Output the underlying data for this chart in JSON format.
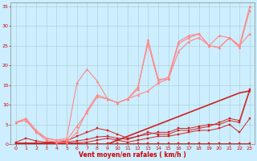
{
  "xlabel": "Vent moyen/en rafales ( km/h )",
  "xlim": [
    -0.5,
    23.5
  ],
  "ylim": [
    0,
    36
  ],
  "yticks": [
    0,
    5,
    10,
    15,
    20,
    25,
    30,
    35
  ],
  "xticks": [
    0,
    1,
    2,
    3,
    4,
    5,
    6,
    7,
    8,
    9,
    10,
    11,
    12,
    13,
    14,
    15,
    16,
    17,
    18,
    19,
    20,
    21,
    22,
    23
  ],
  "bg_color": "#cceeff",
  "grid_color": "#aacccc",
  "lines": [
    {
      "x": [
        0,
        1,
        2,
        3,
        4,
        5,
        6,
        7,
        8,
        9,
        10,
        11,
        12,
        13,
        14,
        15,
        16,
        17,
        18,
        19,
        20,
        21,
        22,
        23
      ],
      "y": [
        0.3,
        0.3,
        0.3,
        0.3,
        0.3,
        0.3,
        0.3,
        0.3,
        0.3,
        0.3,
        0.3,
        0.3,
        0.3,
        0.3,
        0.3,
        0.3,
        0.3,
        0.3,
        0.3,
        0.3,
        0.3,
        0.3,
        0.3,
        0.3
      ],
      "color": "#cc2222",
      "lw": 0.7,
      "marker": "s",
      "ms": 1.5
    },
    {
      "x": [
        0,
        1,
        2,
        3,
        4,
        5,
        6,
        7,
        8,
        9,
        10,
        11,
        12,
        13,
        14,
        15,
        16,
        17,
        18,
        19,
        20,
        21,
        22,
        23
      ],
      "y": [
        0.3,
        0.3,
        0.3,
        0.3,
        0.3,
        0.3,
        0.3,
        0.5,
        1.0,
        1.5,
        1.0,
        0.5,
        1.0,
        1.5,
        2.0,
        2.0,
        2.5,
        3.0,
        3.5,
        3.5,
        4.0,
        5.0,
        3.0,
        6.5
      ],
      "color": "#cc2222",
      "lw": 0.7,
      "marker": "s",
      "ms": 1.5
    },
    {
      "x": [
        0,
        1,
        2,
        3,
        4,
        5,
        6,
        7,
        8,
        9,
        10,
        11,
        12,
        13,
        14,
        15,
        16,
        17,
        18,
        19,
        20,
        21,
        22,
        23
      ],
      "y": [
        0.3,
        0.3,
        0.3,
        0.3,
        0.5,
        0.5,
        0.8,
        1.2,
        1.8,
        2.0,
        1.5,
        1.2,
        2.0,
        2.5,
        3.0,
        3.0,
        4.0,
        4.0,
        4.5,
        5.0,
        5.0,
        6.0,
        5.5,
        13.5
      ],
      "color": "#cc2222",
      "lw": 0.7,
      "marker": "s",
      "ms": 1.5
    },
    {
      "x": [
        0,
        1,
        2,
        3,
        4,
        5,
        6,
        7,
        8,
        9,
        10,
        11,
        12,
        13,
        14,
        15,
        16,
        17,
        18,
        19,
        20,
        21,
        22,
        23
      ],
      "y": [
        0.5,
        1.5,
        0.8,
        0.5,
        0.5,
        0.8,
        2.0,
        3.0,
        4.0,
        3.5,
        2.5,
        1.5,
        2.0,
        3.0,
        2.5,
        2.5,
        3.5,
        3.5,
        4.0,
        4.5,
        5.5,
        6.5,
        6.0,
        14.0
      ],
      "color": "#cc2222",
      "lw": 0.7,
      "marker": "s",
      "ms": 1.5
    },
    {
      "x": [
        0,
        1,
        2,
        3,
        4,
        5,
        6,
        7,
        8,
        9,
        10,
        11,
        12,
        13,
        14,
        15,
        16,
        17,
        18,
        19,
        20,
        21,
        22,
        23
      ],
      "y": [
        0,
        0,
        0,
        0,
        0,
        0,
        0,
        0,
        0,
        0,
        1,
        2,
        3,
        4,
        5,
        6,
        7,
        8,
        9,
        10,
        11,
        12,
        13,
        13.5
      ],
      "color": "#cc2222",
      "lw": 1.2,
      "marker": "None",
      "ms": 0
    },
    {
      "x": [
        0,
        1,
        2,
        3,
        4,
        5,
        6,
        7,
        8,
        9,
        10,
        11,
        12,
        13,
        14,
        15,
        16,
        17,
        18,
        19,
        20,
        21,
        22,
        23
      ],
      "y": [
        5.5,
        6.5,
        3.0,
        1.5,
        1.0,
        1.5,
        15.5,
        19.0,
        16.0,
        11.5,
        10.5,
        11.5,
        12.5,
        13.5,
        15.5,
        16.5,
        23.5,
        26.0,
        27.0,
        25.0,
        27.5,
        27.0,
        25.0,
        28.0
      ],
      "color": "#ff8888",
      "lw": 0.8,
      "marker": "^",
      "ms": 2
    },
    {
      "x": [
        0,
        1,
        2,
        3,
        4,
        5,
        6,
        7,
        8,
        9,
        10,
        11,
        12,
        13,
        14,
        15,
        16,
        17,
        18,
        19,
        20,
        21,
        22,
        23
      ],
      "y": [
        5.5,
        6.5,
        3.5,
        1.5,
        1.0,
        1.0,
        4.5,
        8.0,
        12.0,
        11.5,
        10.5,
        11.5,
        14.0,
        26.5,
        16.5,
        16.5,
        25.5,
        27.0,
        28.0,
        25.0,
        24.5,
        27.0,
        25.0,
        35.0
      ],
      "color": "#ff8888",
      "lw": 0.8,
      "marker": "^",
      "ms": 2
    },
    {
      "x": [
        0,
        1,
        2,
        3,
        4,
        5,
        6,
        7,
        8,
        9,
        10,
        11,
        12,
        13,
        14,
        15,
        16,
        17,
        18,
        19,
        20,
        21,
        22,
        23
      ],
      "y": [
        5.5,
        6.0,
        3.0,
        1.0,
        0.5,
        0.5,
        3.0,
        8.5,
        12.5,
        11.5,
        10.5,
        11.5,
        14.5,
        25.5,
        16.0,
        17.0,
        26.0,
        27.5,
        28.0,
        25.0,
        24.5,
        27.0,
        24.5,
        34.0
      ],
      "color": "#ff8888",
      "lw": 0.8,
      "marker": "^",
      "ms": 2
    }
  ]
}
